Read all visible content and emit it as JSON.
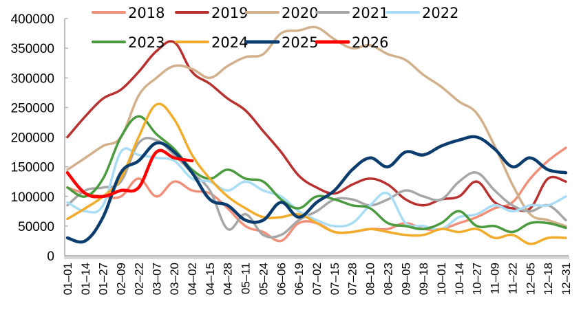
{
  "chart_data": {
    "type": "line",
    "title": "",
    "xlabel": "",
    "ylabel": "",
    "ylim": [
      0,
      400000
    ],
    "yticks": [
      "0",
      "50000",
      "100000",
      "150000",
      "200000",
      "250000",
      "300000",
      "350000",
      "400000"
    ],
    "ytick_values": [
      0,
      50000,
      100000,
      150000,
      200000,
      250000,
      300000,
      350000,
      400000
    ],
    "grid": false,
    "legend_position": "top",
    "categories": [
      "01-01",
      "01-14",
      "01-27",
      "02-09",
      "02-22",
      "03-07",
      "03-20",
      "04-02",
      "04-15",
      "04-28",
      "05-11",
      "05-24",
      "06-06",
      "06-19",
      "07-02",
      "07-15",
      "07-28",
      "08-10",
      "08-23",
      "09-05",
      "09-18",
      "10-01",
      "10-14",
      "10-27",
      "11-09",
      "11-22",
      "12-05",
      "12-18",
      "12-31"
    ],
    "series": [
      {
        "name": "2018",
        "color": "#F0907A",
        "width": 3.5,
        "values": [
          115000,
          105000,
          100000,
          100000,
          130000,
          100000,
          125000,
          110000,
          105000,
          80000,
          50000,
          40000,
          25000,
          55000,
          55000,
          40000,
          40000,
          45000,
          45000,
          55000,
          45000,
          45000,
          55000,
          65000,
          80000,
          90000,
          130000,
          160000,
          182000
        ]
      },
      {
        "name": "2019",
        "color": "#B8312F",
        "width": 3.5,
        "values": [
          200000,
          235000,
          265000,
          280000,
          310000,
          345000,
          360000,
          310000,
          290000,
          265000,
          245000,
          210000,
          175000,
          135000,
          115000,
          105000,
          120000,
          130000,
          120000,
          95000,
          85000,
          95000,
          100000,
          125000,
          90000,
          80000,
          80000,
          130000,
          125000
        ]
      },
      {
        "name": "2020",
        "color": "#D2B08C",
        "width": 3.5,
        "values": [
          145000,
          165000,
          185000,
          200000,
          270000,
          300000,
          320000,
          315000,
          300000,
          320000,
          335000,
          340000,
          375000,
          380000,
          385000,
          365000,
          350000,
          355000,
          340000,
          330000,
          305000,
          285000,
          260000,
          240000,
          185000,
          120000,
          70000,
          60000,
          50000
        ]
      },
      {
        "name": "2021",
        "color": "#A6A6A6",
        "width": 3.5,
        "values": [
          85000,
          110000,
          115000,
          125000,
          190000,
          195000,
          170000,
          140000,
          110000,
          45000,
          70000,
          35000,
          35000,
          60000,
          75000,
          95000,
          95000,
          85000,
          95000,
          110000,
          100000,
          95000,
          125000,
          140000,
          110000,
          85000,
          75000,
          85000,
          60000
        ]
      },
      {
        "name": "2022",
        "color": "#A9DCF5",
        "width": 3.5,
        "values": [
          90000,
          75000,
          85000,
          175000,
          170000,
          165000,
          160000,
          130000,
          125000,
          110000,
          125000,
          110000,
          100000,
          75000,
          60000,
          50000,
          55000,
          85000,
          105000,
          55000,
          50000,
          45000,
          65000,
          70000,
          85000,
          75000,
          85000,
          85000,
          100000
        ]
      },
      {
        "name": "2023",
        "color": "#4A9B3E",
        "width": 3.5,
        "values": [
          115000,
          100000,
          130000,
          200000,
          235000,
          205000,
          180000,
          145000,
          130000,
          145000,
          130000,
          125000,
          95000,
          80000,
          100000,
          95000,
          85000,
          80000,
          55000,
          50000,
          45000,
          55000,
          75000,
          50000,
          50000,
          40000,
          55000,
          55000,
          47000
        ]
      },
      {
        "name": "2024",
        "color": "#F2AC2C",
        "width": 3.5,
        "values": [
          62000,
          80000,
          100000,
          130000,
          200000,
          255000,
          230000,
          170000,
          130000,
          100000,
          80000,
          65000,
          65000,
          70000,
          55000,
          40000,
          40000,
          45000,
          40000,
          35000,
          35000,
          45000,
          40000,
          45000,
          30000,
          35000,
          20000,
          30000,
          30000
        ]
      },
      {
        "name": "2025",
        "color": "#0B3C6E",
        "width": 4.5,
        "values": [
          30000,
          25000,
          65000,
          140000,
          160000,
          190000,
          175000,
          140000,
          95000,
          85000,
          60000,
          60000,
          90000,
          65000,
          90000,
          110000,
          145000,
          165000,
          150000,
          175000,
          170000,
          185000,
          195000,
          200000,
          180000,
          150000,
          165000,
          145000,
          140000
        ]
      },
      {
        "name": "2026",
        "color": "#FF0000",
        "width": 4.5,
        "values": [
          140000,
          105000,
          100000,
          110000,
          115000,
          175000,
          165000,
          160000,
          null,
          null,
          null,
          null,
          null,
          null,
          null,
          null,
          null,
          null,
          null,
          null,
          null,
          null,
          null,
          null,
          null,
          null,
          null,
          null,
          null
        ]
      }
    ]
  }
}
